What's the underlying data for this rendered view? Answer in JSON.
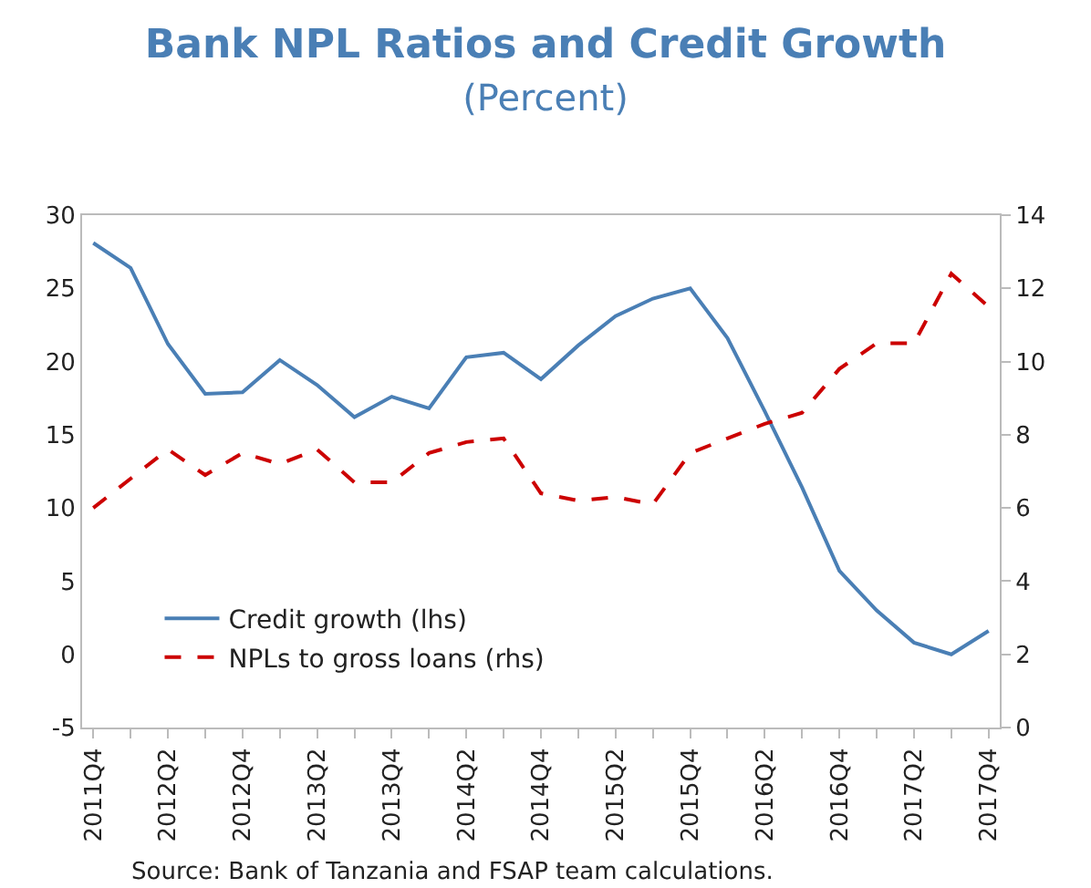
{
  "chart_data": {
    "type": "line",
    "title": "Bank NPL Ratios and Credit Growth",
    "subtitle": "(Percent)",
    "categories": [
      "2011Q4",
      null,
      "2012Q2",
      null,
      "2012Q4",
      null,
      "2013Q2",
      null,
      "2013Q4",
      null,
      "2014Q2",
      null,
      "2014Q4",
      null,
      "2015Q2",
      null,
      "2015Q4",
      null,
      "2016Q2",
      null,
      "2016Q4",
      null,
      "2017Q2",
      null,
      "2017Q4"
    ],
    "series": [
      {
        "name": "Credit growth (lhs)",
        "color": "#4a7fb5",
        "line_style": "solid",
        "values": [
          28.1,
          26.4,
          21.2,
          17.8,
          17.9,
          20.1,
          18.4,
          16.2,
          17.6,
          16.8,
          20.3,
          20.6,
          18.8,
          21.1,
          23.1,
          24.3,
          25.0,
          21.6,
          16.6,
          11.4,
          5.7,
          3.0,
          0.8,
          0.0,
          1.6
        ]
      },
      {
        "name": "NPLs to gross loans (rhs)",
        "color": "#cc0000",
        "line_style": "dashed",
        "axis": "y2",
        "values": [
          6.0,
          6.8,
          7.6,
          6.9,
          7.5,
          7.2,
          7.6,
          6.7,
          6.7,
          7.5,
          7.8,
          7.9,
          6.4,
          6.2,
          6.3,
          6.1,
          7.5,
          7.9,
          8.3,
          8.6,
          9.8,
          10.5,
          10.5,
          12.4,
          11.5
        ]
      }
    ],
    "ylim": [
      -5,
      30
    ],
    "yticks": [
      -5,
      0,
      5,
      10,
      15,
      20,
      25,
      30
    ],
    "y2lim": [
      0,
      14
    ],
    "y2ticks": [
      0,
      2,
      4,
      6,
      8,
      10,
      12,
      14
    ],
    "legend": "bottom left",
    "marker": "none",
    "annotations": [
      "Source: Bank of Tanzania and FSAP team calculations."
    ]
  }
}
